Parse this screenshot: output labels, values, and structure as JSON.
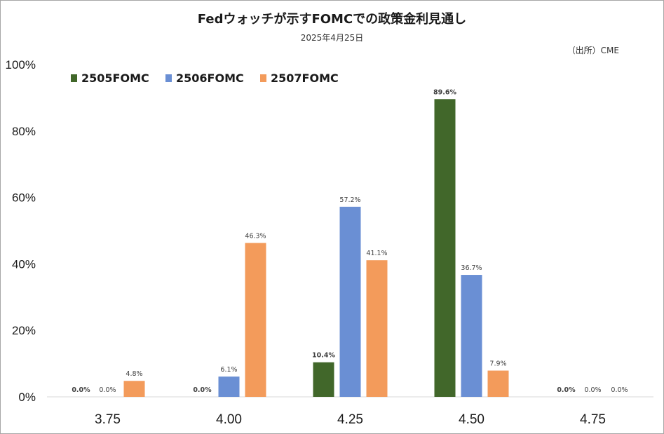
{
  "chart_data": {
    "type": "bar",
    "title": "Fedウォッチが示すFOMCでの政策金利見通し",
    "subtitle": "2025年4月25日",
    "source": "（出所）CME",
    "categories": [
      "3.75",
      "4.00",
      "4.25",
      "4.50",
      "4.75"
    ],
    "series": [
      {
        "name": "2505FOMC",
        "color": "#41672a",
        "values": [
          0.0,
          0.0,
          10.4,
          89.6,
          0.0
        ],
        "labels": [
          "0.0%",
          "0.0%",
          "10.4%",
          "89.6%",
          "0.0%"
        ]
      },
      {
        "name": "2506FOMC",
        "color": "#6a8fd4",
        "values": [
          0.0,
          6.1,
          57.2,
          36.7,
          0.0
        ],
        "labels": [
          "0.0%",
          "6.1%",
          "57.2%",
          "36.7%",
          "0.0%"
        ]
      },
      {
        "name": "2507FOMC",
        "color": "#f39b5b",
        "values": [
          4.8,
          46.3,
          41.1,
          7.9,
          0.0
        ],
        "labels": [
          "4.8%",
          "46.3%",
          "41.1%",
          "7.9%",
          "0.0%"
        ]
      }
    ],
    "yticks": [
      "0%",
      "20%",
      "40%",
      "60%",
      "80%",
      "100%"
    ],
    "ylim": [
      0,
      100
    ],
    "grid": false,
    "legend_position": "top-left"
  }
}
